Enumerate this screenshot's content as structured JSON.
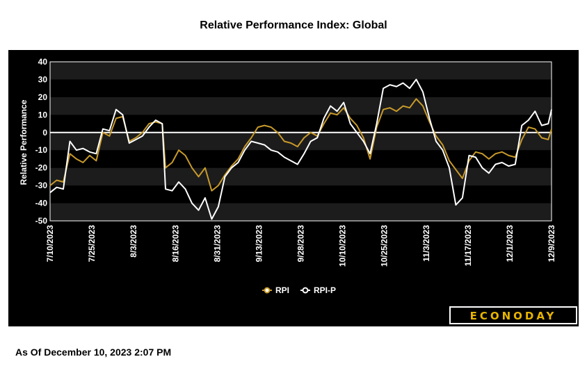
{
  "header": {
    "title": "Relative Performance Index: Global"
  },
  "footer": {
    "as_of": "As Of December 10, 2023 2:07 PM"
  },
  "logo": {
    "text": "ECONODAY"
  },
  "colors": {
    "rpi": "#c89a2a",
    "rpi_p": "#ffffff",
    "background": "#000000",
    "band": "#1c1c1c"
  },
  "chart_data": {
    "type": "line",
    "title": "Relative Performance Index: Global",
    "ylabel": "Relative Performance",
    "xlabel": "",
    "ylim": [
      -50,
      40
    ],
    "yticks": [
      40,
      30,
      20,
      10,
      0,
      -10,
      -20,
      -30,
      -40,
      -50
    ],
    "xlim": [
      "2023-07-10",
      "2023-12-09"
    ],
    "xtick_labels": [
      "7/10/2023",
      "7/25/2023",
      "8/3/2023",
      "8/16/2023",
      "8/31/2023",
      "9/13/2023",
      "9/28/2023",
      "10/10/2023",
      "10/25/2023",
      "11/3/2023",
      "11/17/2023",
      "12/1/2023",
      "12/9/2023"
    ],
    "legend": {
      "position": "bottom",
      "entries": [
        "RPI",
        "RPI-P"
      ]
    },
    "series": [
      {
        "name": "RPI",
        "color": "#c89a2a",
        "points": [
          [
            "2023-07-10",
            -30
          ],
          [
            "2023-07-12",
            -27
          ],
          [
            "2023-07-14",
            -28
          ],
          [
            "2023-07-16",
            -12
          ],
          [
            "2023-07-18",
            -15
          ],
          [
            "2023-07-20",
            -17
          ],
          [
            "2023-07-22",
            -13
          ],
          [
            "2023-07-24",
            -16
          ],
          [
            "2023-07-26",
            0
          ],
          [
            "2023-07-28",
            -2
          ],
          [
            "2023-07-30",
            8
          ],
          [
            "2023-08-01",
            9
          ],
          [
            "2023-08-03",
            -5
          ],
          [
            "2023-08-05",
            -3
          ],
          [
            "2023-08-07",
            0
          ],
          [
            "2023-08-09",
            5
          ],
          [
            "2023-08-11",
            6
          ],
          [
            "2023-08-13",
            5
          ],
          [
            "2023-08-14",
            -20
          ],
          [
            "2023-08-16",
            -17
          ],
          [
            "2023-08-18",
            -10
          ],
          [
            "2023-08-20",
            -13
          ],
          [
            "2023-08-22",
            -20
          ],
          [
            "2023-08-24",
            -25
          ],
          [
            "2023-08-26",
            -20
          ],
          [
            "2023-08-28",
            -33
          ],
          [
            "2023-08-30",
            -30
          ],
          [
            "2023-09-01",
            -24
          ],
          [
            "2023-09-03",
            -19
          ],
          [
            "2023-09-05",
            -15
          ],
          [
            "2023-09-07",
            -8
          ],
          [
            "2023-09-09",
            -3
          ],
          [
            "2023-09-11",
            3
          ],
          [
            "2023-09-13",
            4
          ],
          [
            "2023-09-15",
            3
          ],
          [
            "2023-09-17",
            0
          ],
          [
            "2023-09-19",
            -5
          ],
          [
            "2023-09-21",
            -6
          ],
          [
            "2023-09-23",
            -8
          ],
          [
            "2023-09-25",
            -3
          ],
          [
            "2023-09-27",
            0
          ],
          [
            "2023-09-29",
            -2
          ],
          [
            "2023-10-01",
            5
          ],
          [
            "2023-10-03",
            11
          ],
          [
            "2023-10-05",
            10
          ],
          [
            "2023-10-07",
            14
          ],
          [
            "2023-10-09",
            8
          ],
          [
            "2023-10-11",
            4
          ],
          [
            "2023-10-13",
            -3
          ],
          [
            "2023-10-15",
            -15
          ],
          [
            "2023-10-17",
            3
          ],
          [
            "2023-10-19",
            13
          ],
          [
            "2023-10-21",
            14
          ],
          [
            "2023-10-23",
            12
          ],
          [
            "2023-10-25",
            15
          ],
          [
            "2023-10-27",
            14
          ],
          [
            "2023-10-29",
            19
          ],
          [
            "2023-10-31",
            15
          ],
          [
            "2023-11-02",
            6
          ],
          [
            "2023-11-04",
            -2
          ],
          [
            "2023-11-06",
            -7
          ],
          [
            "2023-11-08",
            -16
          ],
          [
            "2023-11-10",
            -21
          ],
          [
            "2023-11-12",
            -26
          ],
          [
            "2023-11-14",
            -16
          ],
          [
            "2023-11-16",
            -11
          ],
          [
            "2023-11-18",
            -12
          ],
          [
            "2023-11-20",
            -15
          ],
          [
            "2023-11-22",
            -12
          ],
          [
            "2023-11-24",
            -11
          ],
          [
            "2023-11-26",
            -13
          ],
          [
            "2023-11-28",
            -14
          ],
          [
            "2023-11-30",
            -4
          ],
          [
            "2023-12-02",
            3
          ],
          [
            "2023-12-04",
            2
          ],
          [
            "2023-12-06",
            -3
          ],
          [
            "2023-12-08",
            -4
          ],
          [
            "2023-12-09",
            2
          ]
        ]
      },
      {
        "name": "RPI-P",
        "color": "#ffffff",
        "points": [
          [
            "2023-07-10",
            -34
          ],
          [
            "2023-07-12",
            -31
          ],
          [
            "2023-07-14",
            -32
          ],
          [
            "2023-07-16",
            -5
          ],
          [
            "2023-07-18",
            -10
          ],
          [
            "2023-07-20",
            -9
          ],
          [
            "2023-07-22",
            -11
          ],
          [
            "2023-07-24",
            -12
          ],
          [
            "2023-07-26",
            2
          ],
          [
            "2023-07-28",
            1
          ],
          [
            "2023-07-30",
            13
          ],
          [
            "2023-08-01",
            10
          ],
          [
            "2023-08-03",
            -6
          ],
          [
            "2023-08-05",
            -4
          ],
          [
            "2023-08-07",
            -2
          ],
          [
            "2023-08-09",
            3
          ],
          [
            "2023-08-11",
            7
          ],
          [
            "2023-08-13",
            5
          ],
          [
            "2023-08-14",
            -32
          ],
          [
            "2023-08-16",
            -33
          ],
          [
            "2023-08-18",
            -28
          ],
          [
            "2023-08-20",
            -32
          ],
          [
            "2023-08-22",
            -40
          ],
          [
            "2023-08-24",
            -44
          ],
          [
            "2023-08-26",
            -37
          ],
          [
            "2023-08-28",
            -49
          ],
          [
            "2023-08-30",
            -42
          ],
          [
            "2023-09-01",
            -25
          ],
          [
            "2023-09-03",
            -20
          ],
          [
            "2023-09-05",
            -17
          ],
          [
            "2023-09-07",
            -10
          ],
          [
            "2023-09-09",
            -5
          ],
          [
            "2023-09-11",
            -6
          ],
          [
            "2023-09-13",
            -7
          ],
          [
            "2023-09-15",
            -10
          ],
          [
            "2023-09-17",
            -11
          ],
          [
            "2023-09-19",
            -14
          ],
          [
            "2023-09-21",
            -16
          ],
          [
            "2023-09-23",
            -18
          ],
          [
            "2023-09-25",
            -12
          ],
          [
            "2023-09-27",
            -5
          ],
          [
            "2023-09-29",
            -3
          ],
          [
            "2023-10-01",
            8
          ],
          [
            "2023-10-03",
            15
          ],
          [
            "2023-10-05",
            12
          ],
          [
            "2023-10-07",
            17
          ],
          [
            "2023-10-09",
            5
          ],
          [
            "2023-10-11",
            0
          ],
          [
            "2023-10-13",
            -5
          ],
          [
            "2023-10-15",
            -12
          ],
          [
            "2023-10-17",
            5
          ],
          [
            "2023-10-19",
            25
          ],
          [
            "2023-10-21",
            27
          ],
          [
            "2023-10-23",
            26
          ],
          [
            "2023-10-25",
            28
          ],
          [
            "2023-10-27",
            25
          ],
          [
            "2023-10-29",
            30
          ],
          [
            "2023-10-31",
            23
          ],
          [
            "2023-11-02",
            8
          ],
          [
            "2023-11-04",
            -5
          ],
          [
            "2023-11-06",
            -10
          ],
          [
            "2023-11-08",
            -20
          ],
          [
            "2023-11-10",
            -41
          ],
          [
            "2023-11-12",
            -37
          ],
          [
            "2023-11-14",
            -13
          ],
          [
            "2023-11-16",
            -14
          ],
          [
            "2023-11-18",
            -20
          ],
          [
            "2023-11-20",
            -23
          ],
          [
            "2023-11-22",
            -18
          ],
          [
            "2023-11-24",
            -17
          ],
          [
            "2023-11-26",
            -19
          ],
          [
            "2023-11-28",
            -18
          ],
          [
            "2023-11-30",
            4
          ],
          [
            "2023-12-02",
            7
          ],
          [
            "2023-12-04",
            12
          ],
          [
            "2023-12-06",
            4
          ],
          [
            "2023-12-08",
            5
          ],
          [
            "2023-12-09",
            13
          ]
        ]
      }
    ]
  }
}
